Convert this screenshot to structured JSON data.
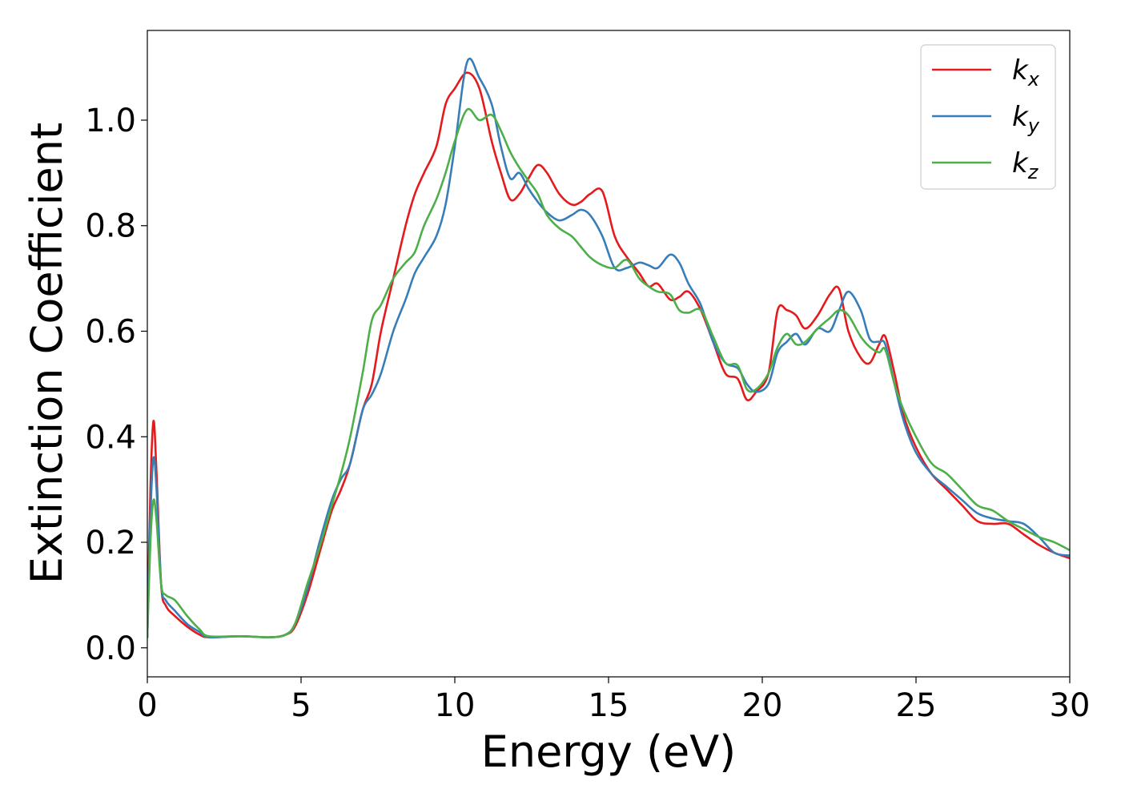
{
  "chart_data": {
    "type": "line",
    "xlabel": "Energy (eV)",
    "ylabel": "Extinction Coefficient",
    "xlim": [
      0,
      30
    ],
    "ylim": [
      -0.055,
      1.17
    ],
    "xticks": [
      0,
      5,
      10,
      15,
      20,
      25,
      30
    ],
    "xtick_labels": [
      "0",
      "5",
      "10",
      "15",
      "20",
      "25",
      "30"
    ],
    "yticks": [
      0.0,
      0.2,
      0.4,
      0.6,
      0.8,
      1.0
    ],
    "ytick_labels": [
      "0.0",
      "0.2",
      "0.4",
      "0.6",
      "0.8",
      "1.0"
    ],
    "grid": false,
    "legend_position": "top-right",
    "series": [
      {
        "name": "k",
        "subscript": "x",
        "color": "#e41a1c",
        "x": [
          0,
          0.1,
          0.2,
          0.3,
          0.45,
          0.6,
          0.9,
          1.3,
          1.7,
          2.0,
          3.0,
          4.0,
          4.5,
          4.8,
          5.2,
          5.6,
          6.0,
          6.3,
          6.6,
          7.0,
          7.3,
          7.6,
          8.0,
          8.4,
          8.7,
          9.0,
          9.4,
          9.7,
          10.0,
          10.4,
          10.8,
          11.2,
          11.5,
          11.8,
          12.1,
          12.4,
          12.7,
          13.0,
          13.4,
          13.8,
          14.1,
          14.4,
          14.8,
          15.2,
          15.6,
          16.0,
          16.3,
          16.6,
          17.0,
          17.3,
          17.6,
          18.0,
          18.4,
          18.8,
          19.2,
          19.5,
          19.8,
          20.2,
          20.5,
          20.8,
          21.1,
          21.4,
          21.8,
          22.2,
          22.5,
          22.8,
          23.2,
          23.5,
          23.8,
          24.0,
          24.3,
          24.6,
          25.0,
          25.5,
          26.0,
          26.5,
          27.0,
          27.5,
          28.0,
          28.5,
          29.0,
          29.5,
          30.0
        ],
        "y": [
          0.02,
          0.3,
          0.43,
          0.33,
          0.12,
          0.08,
          0.06,
          0.04,
          0.025,
          0.02,
          0.022,
          0.02,
          0.025,
          0.04,
          0.1,
          0.18,
          0.26,
          0.3,
          0.35,
          0.45,
          0.5,
          0.6,
          0.7,
          0.8,
          0.86,
          0.9,
          0.95,
          1.03,
          1.06,
          1.09,
          1.06,
          0.96,
          0.9,
          0.85,
          0.86,
          0.89,
          0.915,
          0.9,
          0.86,
          0.84,
          0.845,
          0.86,
          0.865,
          0.78,
          0.74,
          0.71,
          0.685,
          0.69,
          0.66,
          0.665,
          0.675,
          0.64,
          0.58,
          0.52,
          0.51,
          0.47,
          0.485,
          0.52,
          0.64,
          0.64,
          0.63,
          0.605,
          0.63,
          0.67,
          0.68,
          0.6,
          0.55,
          0.54,
          0.575,
          0.59,
          0.52,
          0.44,
          0.38,
          0.33,
          0.3,
          0.27,
          0.24,
          0.235,
          0.235,
          0.215,
          0.195,
          0.18,
          0.17
        ]
      },
      {
        "name": "k",
        "subscript": "y",
        "color": "#377eb8",
        "x": [
          0,
          0.1,
          0.2,
          0.3,
          0.45,
          0.6,
          0.9,
          1.3,
          1.7,
          2.0,
          3.0,
          4.0,
          4.5,
          4.8,
          5.2,
          5.6,
          6.0,
          6.3,
          6.6,
          7.0,
          7.3,
          7.6,
          8.0,
          8.4,
          8.7,
          9.0,
          9.4,
          9.7,
          10.0,
          10.4,
          10.8,
          11.2,
          11.5,
          11.8,
          12.1,
          12.4,
          12.7,
          13.0,
          13.4,
          13.8,
          14.1,
          14.4,
          14.8,
          15.2,
          15.6,
          16.0,
          16.3,
          16.6,
          17.0,
          17.3,
          17.6,
          18.0,
          18.4,
          18.8,
          19.2,
          19.5,
          19.8,
          20.2,
          20.5,
          20.8,
          21.1,
          21.4,
          21.8,
          22.2,
          22.5,
          22.8,
          23.2,
          23.5,
          23.8,
          24.0,
          24.3,
          24.6,
          25.0,
          25.5,
          26.0,
          26.5,
          27.0,
          27.5,
          28.0,
          28.5,
          29.0,
          29.5,
          30.0
        ],
        "y": [
          0.02,
          0.25,
          0.36,
          0.3,
          0.12,
          0.09,
          0.07,
          0.045,
          0.03,
          0.02,
          0.022,
          0.02,
          0.025,
          0.045,
          0.11,
          0.2,
          0.28,
          0.32,
          0.35,
          0.45,
          0.48,
          0.52,
          0.6,
          0.66,
          0.71,
          0.74,
          0.78,
          0.84,
          0.95,
          1.11,
          1.08,
          1.03,
          0.95,
          0.89,
          0.9,
          0.87,
          0.845,
          0.825,
          0.81,
          0.82,
          0.83,
          0.82,
          0.78,
          0.72,
          0.72,
          0.73,
          0.725,
          0.72,
          0.745,
          0.73,
          0.69,
          0.65,
          0.58,
          0.54,
          0.53,
          0.5,
          0.485,
          0.5,
          0.56,
          0.58,
          0.595,
          0.575,
          0.605,
          0.6,
          0.64,
          0.675,
          0.64,
          0.585,
          0.58,
          0.575,
          0.5,
          0.43,
          0.37,
          0.33,
          0.305,
          0.28,
          0.255,
          0.245,
          0.24,
          0.235,
          0.21,
          0.18,
          0.175
        ]
      },
      {
        "name": "k",
        "subscript": "z",
        "color": "#4daf4a",
        "x": [
          0,
          0.1,
          0.2,
          0.3,
          0.45,
          0.6,
          0.9,
          1.3,
          1.7,
          2.0,
          3.0,
          4.0,
          4.5,
          4.8,
          5.2,
          5.6,
          6.0,
          6.3,
          6.6,
          7.0,
          7.3,
          7.6,
          8.0,
          8.4,
          8.7,
          9.0,
          9.4,
          9.7,
          10.0,
          10.4,
          10.8,
          11.2,
          11.5,
          11.8,
          12.1,
          12.4,
          12.7,
          13.0,
          13.4,
          13.8,
          14.1,
          14.4,
          14.8,
          15.2,
          15.6,
          16.0,
          16.3,
          16.6,
          17.0,
          17.3,
          17.6,
          18.0,
          18.4,
          18.8,
          19.2,
          19.5,
          19.8,
          20.2,
          20.5,
          20.8,
          21.1,
          21.4,
          21.8,
          22.2,
          22.5,
          22.8,
          23.2,
          23.5,
          23.8,
          24.0,
          24.3,
          24.6,
          25.0,
          25.5,
          26.0,
          26.5,
          27.0,
          27.5,
          28.0,
          28.5,
          29.0,
          29.5,
          30.0
        ],
        "y": [
          0.02,
          0.2,
          0.28,
          0.24,
          0.12,
          0.1,
          0.09,
          0.06,
          0.035,
          0.022,
          0.022,
          0.02,
          0.025,
          0.045,
          0.12,
          0.19,
          0.27,
          0.33,
          0.4,
          0.52,
          0.62,
          0.65,
          0.7,
          0.73,
          0.75,
          0.8,
          0.85,
          0.9,
          0.96,
          1.02,
          1.0,
          1.01,
          0.98,
          0.94,
          0.91,
          0.885,
          0.86,
          0.82,
          0.795,
          0.78,
          0.76,
          0.74,
          0.725,
          0.72,
          0.735,
          0.7,
          0.685,
          0.675,
          0.67,
          0.64,
          0.635,
          0.64,
          0.59,
          0.54,
          0.535,
          0.49,
          0.49,
          0.52,
          0.57,
          0.595,
          0.575,
          0.58,
          0.605,
          0.625,
          0.64,
          0.63,
          0.59,
          0.57,
          0.56,
          0.565,
          0.5,
          0.45,
          0.4,
          0.35,
          0.33,
          0.3,
          0.27,
          0.26,
          0.24,
          0.225,
          0.21,
          0.2,
          0.185
        ]
      }
    ]
  }
}
